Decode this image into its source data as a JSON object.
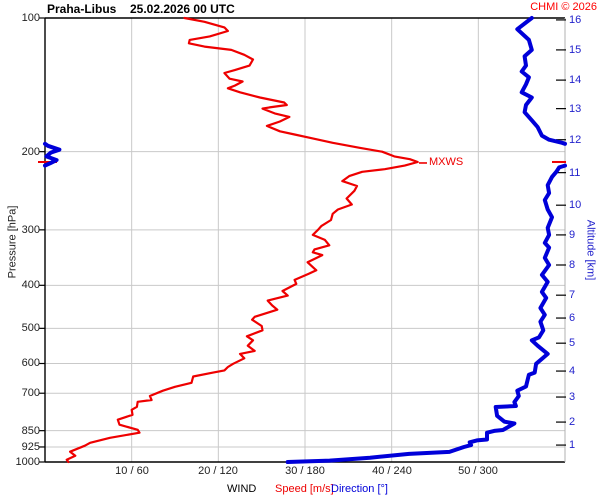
{
  "header": {
    "station": "Praha-Libus",
    "datetime": "25.02.2026 00 UTC",
    "copyright": "CHMI © 2026"
  },
  "chart_data": {
    "type": "line",
    "title": "Praha-Libus 25.02.2026 00 UTC — vertical wind profile sounding",
    "y_axis": {
      "label": "Pressure [hPa]",
      "scale": "log",
      "min": 100,
      "max": 1000,
      "ticks": [
        100,
        200,
        300,
        400,
        500,
        600,
        700,
        850,
        925,
        1000
      ],
      "grid": [
        200,
        300,
        400,
        500,
        600,
        700,
        850,
        925
      ]
    },
    "y2_axis": {
      "label": "Altitude [km]",
      "ticks": [
        {
          "km": 16,
          "p": 101
        },
        {
          "km": 15,
          "p": 118
        },
        {
          "km": 14,
          "p": 138
        },
        {
          "km": 13,
          "p": 160
        },
        {
          "km": 12,
          "p": 188
        },
        {
          "km": 11,
          "p": 223
        },
        {
          "km": 10,
          "p": 264
        },
        {
          "km": 9,
          "p": 308
        },
        {
          "km": 8,
          "p": 360
        },
        {
          "km": 7,
          "p": 421
        },
        {
          "km": 6,
          "p": 474
        },
        {
          "km": 5,
          "p": 540
        },
        {
          "km": 4,
          "p": 624
        },
        {
          "km": 3,
          "p": 714
        },
        {
          "km": 2,
          "p": 813
        },
        {
          "km": 1,
          "p": 916
        }
      ]
    },
    "x_axis": {
      "group_label": "WIND",
      "speed": {
        "label": "Speed [m/s]",
        "min": 0,
        "max": 60,
        "ticks": [
          10,
          20,
          30,
          40,
          50
        ]
      },
      "direction": {
        "label": "Direction [°]",
        "min": 0,
        "max": 360,
        "ticks": [
          60,
          120,
          180,
          240,
          300
        ]
      },
      "tick_labels": [
        "10 / 60",
        "20 / 120",
        "30 / 180",
        "40 / 240",
        "50 / 300"
      ]
    },
    "mxws": {
      "label": "MXWS",
      "pressure": 211,
      "speed": 43.0
    },
    "series": [
      {
        "name": "speed",
        "units": "m/s",
        "points_pressure_speed": [
          [
            100,
            16.1
          ],
          [
            102,
            18.4
          ],
          [
            105,
            20.7
          ],
          [
            107,
            21.1
          ],
          [
            110,
            19.0
          ],
          [
            112,
            16.7
          ],
          [
            114,
            16.6
          ],
          [
            116,
            18.4
          ],
          [
            118,
            21.5
          ],
          [
            121,
            23.0
          ],
          [
            124,
            24.0
          ],
          [
            128,
            23.6
          ],
          [
            131,
            21.9
          ],
          [
            133,
            20.7
          ],
          [
            137,
            21.3
          ],
          [
            139,
            22.8
          ],
          [
            142,
            21.9
          ],
          [
            144,
            21.1
          ],
          [
            147,
            22.5
          ],
          [
            151,
            24.8
          ],
          [
            155,
            27.6
          ],
          [
            157,
            27.9
          ],
          [
            159,
            25.9
          ],
          [
            160,
            25.1
          ],
          [
            164,
            26.5
          ],
          [
            167,
            28.2
          ],
          [
            171,
            27.1
          ],
          [
            175,
            25.6
          ],
          [
            180,
            27.1
          ],
          [
            183,
            28.8
          ],
          [
            186,
            30.5
          ],
          [
            191,
            33.2
          ],
          [
            196,
            36.3
          ],
          [
            200,
            38.9
          ],
          [
            205,
            40.3
          ],
          [
            208,
            42.1
          ],
          [
            211,
            43.0
          ],
          [
            215,
            41.5
          ],
          [
            219,
            39.2
          ],
          [
            222,
            36.6
          ],
          [
            227,
            35.1
          ],
          [
            233,
            34.3
          ],
          [
            239,
            36.0
          ],
          [
            245,
            35.7
          ],
          [
            255,
            34.8
          ],
          [
            263,
            35.4
          ],
          [
            270,
            33.8
          ],
          [
            276,
            33.2
          ],
          [
            285,
            33.0
          ],
          [
            294,
            31.9
          ],
          [
            300,
            31.5
          ],
          [
            308,
            30.9
          ],
          [
            316,
            32.3
          ],
          [
            325,
            32.8
          ],
          [
            332,
            31.1
          ],
          [
            337,
            30.9
          ],
          [
            342,
            32.0
          ],
          [
            355,
            30.3
          ],
          [
            370,
            31.3
          ],
          [
            377,
            30.4
          ],
          [
            389,
            28.8
          ],
          [
            397,
            29.0
          ],
          [
            412,
            27.4
          ],
          [
            422,
            28.0
          ],
          [
            433,
            25.7
          ],
          [
            444,
            26.2
          ],
          [
            454,
            26.8
          ],
          [
            471,
            24.2
          ],
          [
            478,
            23.9
          ],
          [
            494,
            25.0
          ],
          [
            505,
            25.1
          ],
          [
            521,
            23.3
          ],
          [
            532,
            24.0
          ],
          [
            547,
            23.4
          ],
          [
            562,
            24.2
          ],
          [
            571,
            22.5
          ],
          [
            584,
            23.0
          ],
          [
            601,
            21.7
          ],
          [
            611,
            21.1
          ],
          [
            622,
            20.7
          ],
          [
            629,
            19.4
          ],
          [
            642,
            17.1
          ],
          [
            663,
            16.9
          ],
          [
            677,
            15.0
          ],
          [
            691,
            13.6
          ],
          [
            710,
            12.1
          ],
          [
            725,
            12.3
          ],
          [
            732,
            10.7
          ],
          [
            751,
            10.6
          ],
          [
            763,
            10.0
          ],
          [
            783,
            10.1
          ],
          [
            803,
            8.4
          ],
          [
            824,
            8.6
          ],
          [
            846,
            10.7
          ],
          [
            859,
            10.9
          ],
          [
            882,
            7.5
          ],
          [
            905,
            5.2
          ],
          [
            919,
            4.6
          ],
          [
            948,
            2.9
          ],
          [
            968,
            3.5
          ],
          [
            988,
            2.5
          ],
          [
            1000,
            2.7
          ]
        ]
      },
      {
        "name": "direction",
        "units": "deg",
        "segments_pressure_direction": [
          [
            [
              100,
              337
            ],
            [
              106,
              327
            ],
            [
              112,
              335
            ],
            [
              118,
              337
            ],
            [
              122,
              332
            ],
            [
              128,
              333
            ],
            [
              132,
              330
            ],
            [
              136,
              335
            ],
            [
              141,
              333
            ],
            [
              147,
              330
            ],
            [
              151,
              337
            ],
            [
              157,
              333
            ],
            [
              163,
              332
            ],
            [
              170,
              337
            ],
            [
              176,
              341
            ],
            [
              184,
              344
            ],
            [
              188,
              349
            ],
            [
              191,
              358
            ],
            [
              192,
              360
            ]
          ],
          [
            [
              192,
              0
            ],
            [
              194,
              2
            ],
            [
              198,
              10
            ],
            [
              201,
              4
            ],
            [
              205,
              1
            ],
            [
              209,
              8
            ],
            [
              212,
              4
            ],
            [
              215,
              0
            ]
          ],
          [
            [
              215,
              360
            ],
            [
              217,
              356
            ],
            [
              222,
              354
            ],
            [
              228,
              351
            ],
            [
              238,
              348
            ],
            [
              248,
              349
            ],
            [
              257,
              346
            ],
            [
              270,
              348
            ],
            [
              281,
              351
            ],
            [
              297,
              348
            ],
            [
              308,
              349
            ],
            [
              321,
              346
            ],
            [
              329,
              349
            ],
            [
              347,
              346
            ],
            [
              360,
              349
            ],
            [
              379,
              344
            ],
            [
              393,
              348
            ],
            [
              414,
              344
            ],
            [
              427,
              347
            ],
            [
              450,
              343
            ],
            [
              466,
              346
            ],
            [
              483,
              343
            ],
            [
              505,
              345
            ],
            [
              524,
              342
            ],
            [
              532,
              337
            ],
            [
              547,
              341
            ],
            [
              571,
              348
            ],
            [
              601,
              340
            ],
            [
              629,
              339
            ],
            [
              636,
              335
            ],
            [
              676,
              333
            ],
            [
              691,
              327
            ],
            [
              710,
              328
            ],
            [
              733,
              325
            ],
            [
              748,
              326
            ],
            [
              752,
              312
            ],
            [
              787,
              313
            ],
            [
              811,
              318
            ],
            [
              819,
              325
            ],
            [
              847,
              317
            ],
            [
              851,
              311
            ],
            [
              859,
              306
            ],
            [
              890,
              306
            ],
            [
              894,
              299
            ],
            [
              903,
              294
            ],
            [
              916,
              295
            ],
            [
              925,
              290
            ],
            [
              949,
              280
            ],
            [
              959,
              252
            ],
            [
              978,
              225
            ],
            [
              993,
              197
            ],
            [
              1000,
              168
            ]
          ]
        ]
      }
    ],
    "colors": {
      "speed": "#ee0000",
      "direction": "#0000d9",
      "grid": "#c9c9c9",
      "axis": "#000000",
      "altitude_labels": "#2222cc",
      "copyright": "#ff0000"
    }
  }
}
